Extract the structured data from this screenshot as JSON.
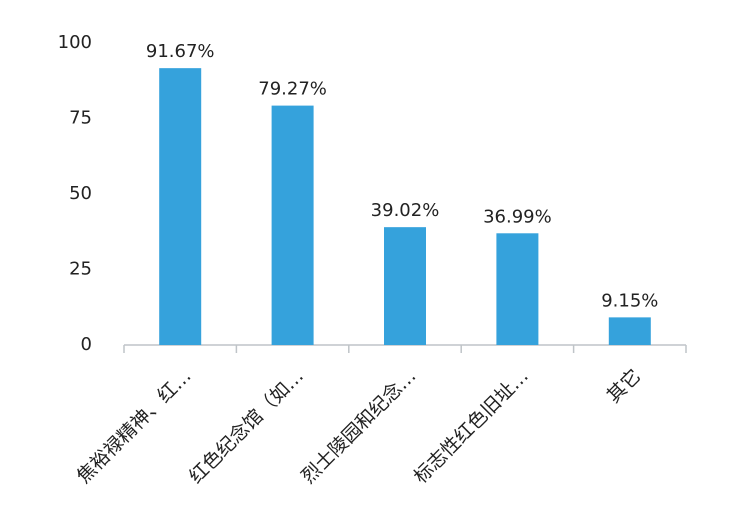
{
  "chart_data": {
    "type": "bar",
    "categories": [
      "焦裕禄精神、红…",
      "红色纪念馆（如…",
      "烈士陵园和纪念…",
      "标志性红色旧址…",
      "其它"
    ],
    "values": [
      91.67,
      79.27,
      39.02,
      36.99,
      9.15
    ],
    "value_labels": [
      "91.67%",
      "79.27%",
      "39.02%",
      "36.99%",
      "9.15%"
    ],
    "color": "#35a2dc",
    "ylim": [
      0,
      100
    ],
    "yticks": [
      0,
      25,
      50,
      75,
      100
    ],
    "grid": false
  }
}
